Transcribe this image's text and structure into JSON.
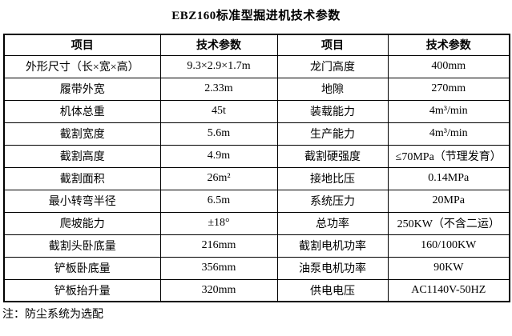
{
  "title": "EBZ160标准型掘进机技术参数",
  "footnote": "注：防尘系统为选配",
  "colors": {
    "background": "#ffffff",
    "border": "#000000",
    "text": "#000000"
  },
  "table": {
    "headers": [
      "项目",
      "技术参数",
      "项目",
      "技术参数"
    ],
    "rows": [
      [
        "外形尺寸（长×宽×高）",
        "9.3×2.9×1.7m",
        "龙门高度",
        "400mm"
      ],
      [
        "履带外宽",
        "2.33m",
        "地隙",
        "270mm"
      ],
      [
        "机体总重",
        "45t",
        "装载能力",
        "4m³/min"
      ],
      [
        "截割宽度",
        "5.6m",
        "生产能力",
        "4m³/min"
      ],
      [
        "截割高度",
        "4.9m",
        "截割硬强度",
        "≤70MPa（节理发育）"
      ],
      [
        "截割面积",
        "26m²",
        "接地比压",
        "0.14MPa"
      ],
      [
        "最小转弯半径",
        "6.5m",
        "系统压力",
        "20MPa"
      ],
      [
        "爬坡能力",
        "±18°",
        "总功率",
        "250KW（不含二运）"
      ],
      [
        "截割头卧底量",
        "216mm",
        "截割电机功率",
        "160/100KW"
      ],
      [
        "铲板卧底量",
        "356mm",
        "油泵电机功率",
        "90KW"
      ],
      [
        "铲板抬升量",
        "320mm",
        "供电电压",
        "AC1140V-50HZ"
      ]
    ]
  }
}
